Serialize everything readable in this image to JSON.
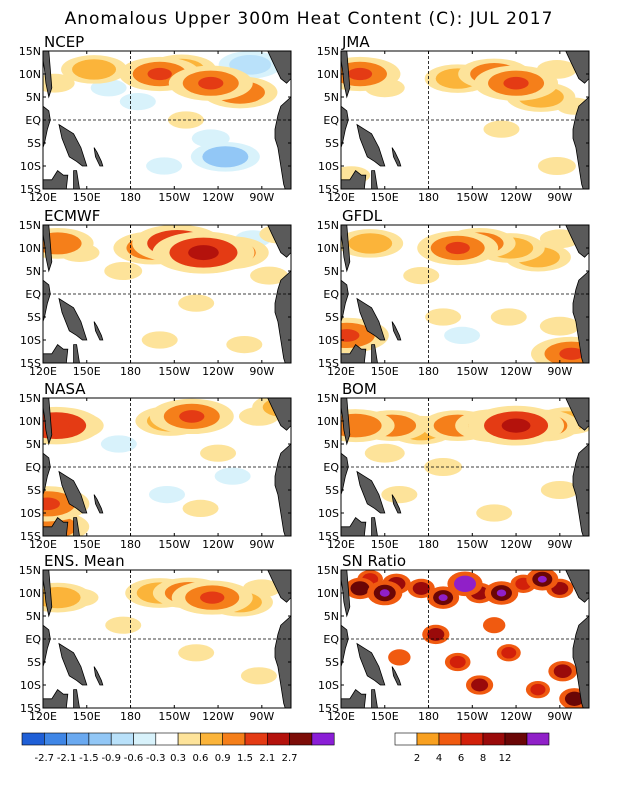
{
  "title": "Anomalous Upper 300m Heat Content (C): JUL 2017",
  "x_ticks": [
    "120E",
    "150E",
    "180",
    "150W",
    "120W",
    "90W"
  ],
  "y_ticks": [
    "15N",
    "10N",
    "5N",
    "EQ",
    "5S",
    "10S",
    "15S"
  ],
  "colors": {
    "land": "#5a5a5a",
    "anomaly_scale": [
      "#1f5fd6",
      "#3f86e6",
      "#6aa9f0",
      "#92c7f6",
      "#b9e1fa",
      "#d8f2fb",
      "#ffffff",
      "#fde39a",
      "#fbb43a",
      "#f57f1a",
      "#e43b14",
      "#b4120c",
      "#7c0c08",
      "#8a1ed6"
    ],
    "snr_scale": [
      "#ffffff",
      "#f8a020",
      "#f05a10",
      "#d2200a",
      "#9a0a0a",
      "#6a0606",
      "#9020c8"
    ]
  },
  "legends": {
    "anomaly_labels": [
      "-2.7",
      "-2.1",
      "-1.5",
      "-0.9",
      "-0.6",
      "-0.3",
      "0.3",
      "0.6",
      "0.9",
      "1.5",
      "2.1",
      "2.7"
    ],
    "snr_labels": [
      "2",
      "4",
      "6",
      "8",
      "12"
    ]
  },
  "chart_data": [
    {
      "type": "heatmap",
      "title": "NCEP",
      "units": "C",
      "x_range": [
        "120E",
        "70W"
      ],
      "y_range": [
        "15S",
        "15N"
      ],
      "features": [
        {
          "lon": 155,
          "lat": 11,
          "value": 0.8
        },
        {
          "lon": 200,
          "lat": 10,
          "value": 1.3
        },
        {
          "lon": 215,
          "lat": 11,
          "value": 0.9
        },
        {
          "lon": 235,
          "lat": 8,
          "value": 1.4
        },
        {
          "lon": 255,
          "lat": 6,
          "value": 1.1
        },
        {
          "lon": 262,
          "lat": 12,
          "value": -0.7
        },
        {
          "lon": 248,
          "lat": 10,
          "value": -0.6
        },
        {
          "lon": 245,
          "lat": -8,
          "value": -0.9
        },
        {
          "lon": 235,
          "lat": -4,
          "value": -0.5
        },
        {
          "lon": 203,
          "lat": -10,
          "value": -0.4
        },
        {
          "lon": 165,
          "lat": 7,
          "value": -0.4
        },
        {
          "lon": 128,
          "lat": 8,
          "value": 0.6
        },
        {
          "lon": 218,
          "lat": 0,
          "value": 0.4
        },
        {
          "lon": 185,
          "lat": 4,
          "value": -0.4
        }
      ]
    },
    {
      "type": "heatmap",
      "title": "JMA",
      "units": "C",
      "x_range": [
        "120E",
        "70W"
      ],
      "y_range": [
        "15S",
        "15N"
      ],
      "features": [
        {
          "lon": 133,
          "lat": 10,
          "value": 1.3
        },
        {
          "lon": 150,
          "lat": 7,
          "value": 0.6
        },
        {
          "lon": 200,
          "lat": 9,
          "value": 0.8
        },
        {
          "lon": 225,
          "lat": 10,
          "value": 1.0
        },
        {
          "lon": 240,
          "lat": 8,
          "value": 1.4
        },
        {
          "lon": 257,
          "lat": 5,
          "value": 0.9
        },
        {
          "lon": 268,
          "lat": 11,
          "value": 0.6
        },
        {
          "lon": 127,
          "lat": -12,
          "value": 0.5
        },
        {
          "lon": 268,
          "lat": -10,
          "value": 0.5
        },
        {
          "lon": 230,
          "lat": -2,
          "value": 0.4
        },
        {
          "lon": 280,
          "lat": 3,
          "value": 0.4
        }
      ]
    },
    {
      "type": "heatmap",
      "title": "ECMWF",
      "units": "C",
      "x_range": [
        "120E",
        "70W"
      ],
      "y_range": [
        "15S",
        "15N"
      ],
      "features": [
        {
          "lon": 130,
          "lat": 11,
          "value": 1.0
        },
        {
          "lon": 145,
          "lat": 9,
          "value": 0.6
        },
        {
          "lon": 195,
          "lat": 10,
          "value": 1.2
        },
        {
          "lon": 212,
          "lat": 11,
          "value": 1.6
        },
        {
          "lon": 230,
          "lat": 9,
          "value": 2.0
        },
        {
          "lon": 248,
          "lat": 9,
          "value": 1.2
        },
        {
          "lon": 264,
          "lat": 12,
          "value": -0.4
        },
        {
          "lon": 282,
          "lat": 13,
          "value": 0.6
        },
        {
          "lon": 175,
          "lat": 5,
          "value": 0.5
        },
        {
          "lon": 225,
          "lat": -2,
          "value": 0.4
        },
        {
          "lon": 200,
          "lat": -10,
          "value": 0.4
        },
        {
          "lon": 258,
          "lat": -11,
          "value": 0.4
        },
        {
          "lon": 275,
          "lat": 4,
          "value": 0.5
        }
      ]
    },
    {
      "type": "heatmap",
      "title": "GFDL",
      "units": "C",
      "x_range": [
        "120E",
        "70W"
      ],
      "y_range": [
        "15S",
        "15N"
      ],
      "features": [
        {
          "lon": 140,
          "lat": 11,
          "value": 0.8
        },
        {
          "lon": 200,
          "lat": 10,
          "value": 1.3
        },
        {
          "lon": 215,
          "lat": 11,
          "value": 1.0
        },
        {
          "lon": 236,
          "lat": 10,
          "value": 0.9
        },
        {
          "lon": 255,
          "lat": 8,
          "value": 0.8
        },
        {
          "lon": 270,
          "lat": 12,
          "value": 0.6
        },
        {
          "lon": 124,
          "lat": -9,
          "value": 1.4
        },
        {
          "lon": 190,
          "lat": -5,
          "value": 0.4
        },
        {
          "lon": 203,
          "lat": -9,
          "value": -0.4
        },
        {
          "lon": 278,
          "lat": -13,
          "value": 1.3
        },
        {
          "lon": 270,
          "lat": -7,
          "value": 0.6
        },
        {
          "lon": 235,
          "lat": -5,
          "value": 0.4
        },
        {
          "lon": 175,
          "lat": 4,
          "value": 0.4
        }
      ]
    },
    {
      "type": "heatmap",
      "title": "NASA",
      "units": "C",
      "x_range": [
        "120E",
        "70W"
      ],
      "y_range": [
        "15S",
        "15N"
      ],
      "features": [
        {
          "lon": 129,
          "lat": 9,
          "value": 1.6
        },
        {
          "lon": 140,
          "lat": 9,
          "value": 0.7
        },
        {
          "lon": 207,
          "lat": 10,
          "value": 0.9
        },
        {
          "lon": 222,
          "lat": 11,
          "value": 1.4
        },
        {
          "lon": 268,
          "lat": 11,
          "value": 0.6
        },
        {
          "lon": 285,
          "lat": 13,
          "value": 0.7
        },
        {
          "lon": 123,
          "lat": -8,
          "value": 1.4
        },
        {
          "lon": 127,
          "lat": -13,
          "value": 1.0
        },
        {
          "lon": 205,
          "lat": -6,
          "value": -0.4
        },
        {
          "lon": 250,
          "lat": -2,
          "value": -0.4
        },
        {
          "lon": 228,
          "lat": -9,
          "value": 0.4
        },
        {
          "lon": 172,
          "lat": 5,
          "value": -0.4
        },
        {
          "lon": 240,
          "lat": 3,
          "value": 0.4
        }
      ]
    },
    {
      "type": "heatmap",
      "title": "BOM",
      "units": "C",
      "x_range": [
        "120E",
        "70W"
      ],
      "y_range": [
        "15S",
        "15N"
      ],
      "features": [
        {
          "lon": 130,
          "lat": 9,
          "value": 1.2
        },
        {
          "lon": 155,
          "lat": 9,
          "value": 1.0
        },
        {
          "lon": 175,
          "lat": 8,
          "value": 0.8
        },
        {
          "lon": 200,
          "lat": 9,
          "value": 1.0
        },
        {
          "lon": 225,
          "lat": 9,
          "value": 1.2
        },
        {
          "lon": 240,
          "lat": 9,
          "value": 1.8
        },
        {
          "lon": 258,
          "lat": 9,
          "value": 1.1
        },
        {
          "lon": 275,
          "lat": 10,
          "value": 0.7
        },
        {
          "lon": 190,
          "lat": 0,
          "value": 0.5
        },
        {
          "lon": 150,
          "lat": 3,
          "value": 0.6
        },
        {
          "lon": 225,
          "lat": -10,
          "value": 0.4
        },
        {
          "lon": 270,
          "lat": -5,
          "value": 0.5
        },
        {
          "lon": 160,
          "lat": -6,
          "value": 0.4
        }
      ]
    },
    {
      "type": "heatmap",
      "title": "ENS. Mean",
      "units": "C",
      "x_range": [
        "120E",
        "70W"
      ],
      "y_range": [
        "15S",
        "15N"
      ],
      "features": [
        {
          "lon": 130,
          "lat": 9,
          "value": 0.9
        },
        {
          "lon": 145,
          "lat": 9,
          "value": 0.5
        },
        {
          "lon": 200,
          "lat": 10,
          "value": 0.9
        },
        {
          "lon": 220,
          "lat": 10,
          "value": 1.0
        },
        {
          "lon": 236,
          "lat": 9,
          "value": 1.3
        },
        {
          "lon": 255,
          "lat": 8,
          "value": 0.8
        },
        {
          "lon": 270,
          "lat": 11,
          "value": 0.5
        },
        {
          "lon": 175,
          "lat": 3,
          "value": 0.4
        },
        {
          "lon": 225,
          "lat": -3,
          "value": 0.4
        },
        {
          "lon": 268,
          "lat": -8,
          "value": 0.4
        }
      ]
    },
    {
      "type": "heatmap",
      "title": "SN Ratio",
      "units": "",
      "x_range": [
        "120E",
        "70W"
      ],
      "y_range": [
        "15S",
        "15N"
      ],
      "features": [
        {
          "lon": 133,
          "lat": 11,
          "value": 9
        },
        {
          "lon": 140,
          "lat": 13,
          "value": 6
        },
        {
          "lon": 150,
          "lat": 10,
          "value": 12
        },
        {
          "lon": 158,
          "lat": 12,
          "value": 8
        },
        {
          "lon": 175,
          "lat": 11,
          "value": 7
        },
        {
          "lon": 190,
          "lat": 9,
          "value": 10
        },
        {
          "lon": 205,
          "lat": 12,
          "value": 13
        },
        {
          "lon": 215,
          "lat": 10,
          "value": 8
        },
        {
          "lon": 230,
          "lat": 10,
          "value": 11
        },
        {
          "lon": 245,
          "lat": 12,
          "value": 6
        },
        {
          "lon": 258,
          "lat": 13,
          "value": 10
        },
        {
          "lon": 270,
          "lat": 11,
          "value": 7
        },
        {
          "lon": 185,
          "lat": 1,
          "value": 7
        },
        {
          "lon": 200,
          "lat": -5,
          "value": 6
        },
        {
          "lon": 215,
          "lat": -10,
          "value": 7
        },
        {
          "lon": 235,
          "lat": -3,
          "value": 5
        },
        {
          "lon": 255,
          "lat": -11,
          "value": 5
        },
        {
          "lon": 272,
          "lat": -7,
          "value": 8
        },
        {
          "lon": 280,
          "lat": -13,
          "value": 9
        },
        {
          "lon": 160,
          "lat": -4,
          "value": 4
        },
        {
          "lon": 225,
          "lat": 3,
          "value": 4
        }
      ]
    }
  ]
}
